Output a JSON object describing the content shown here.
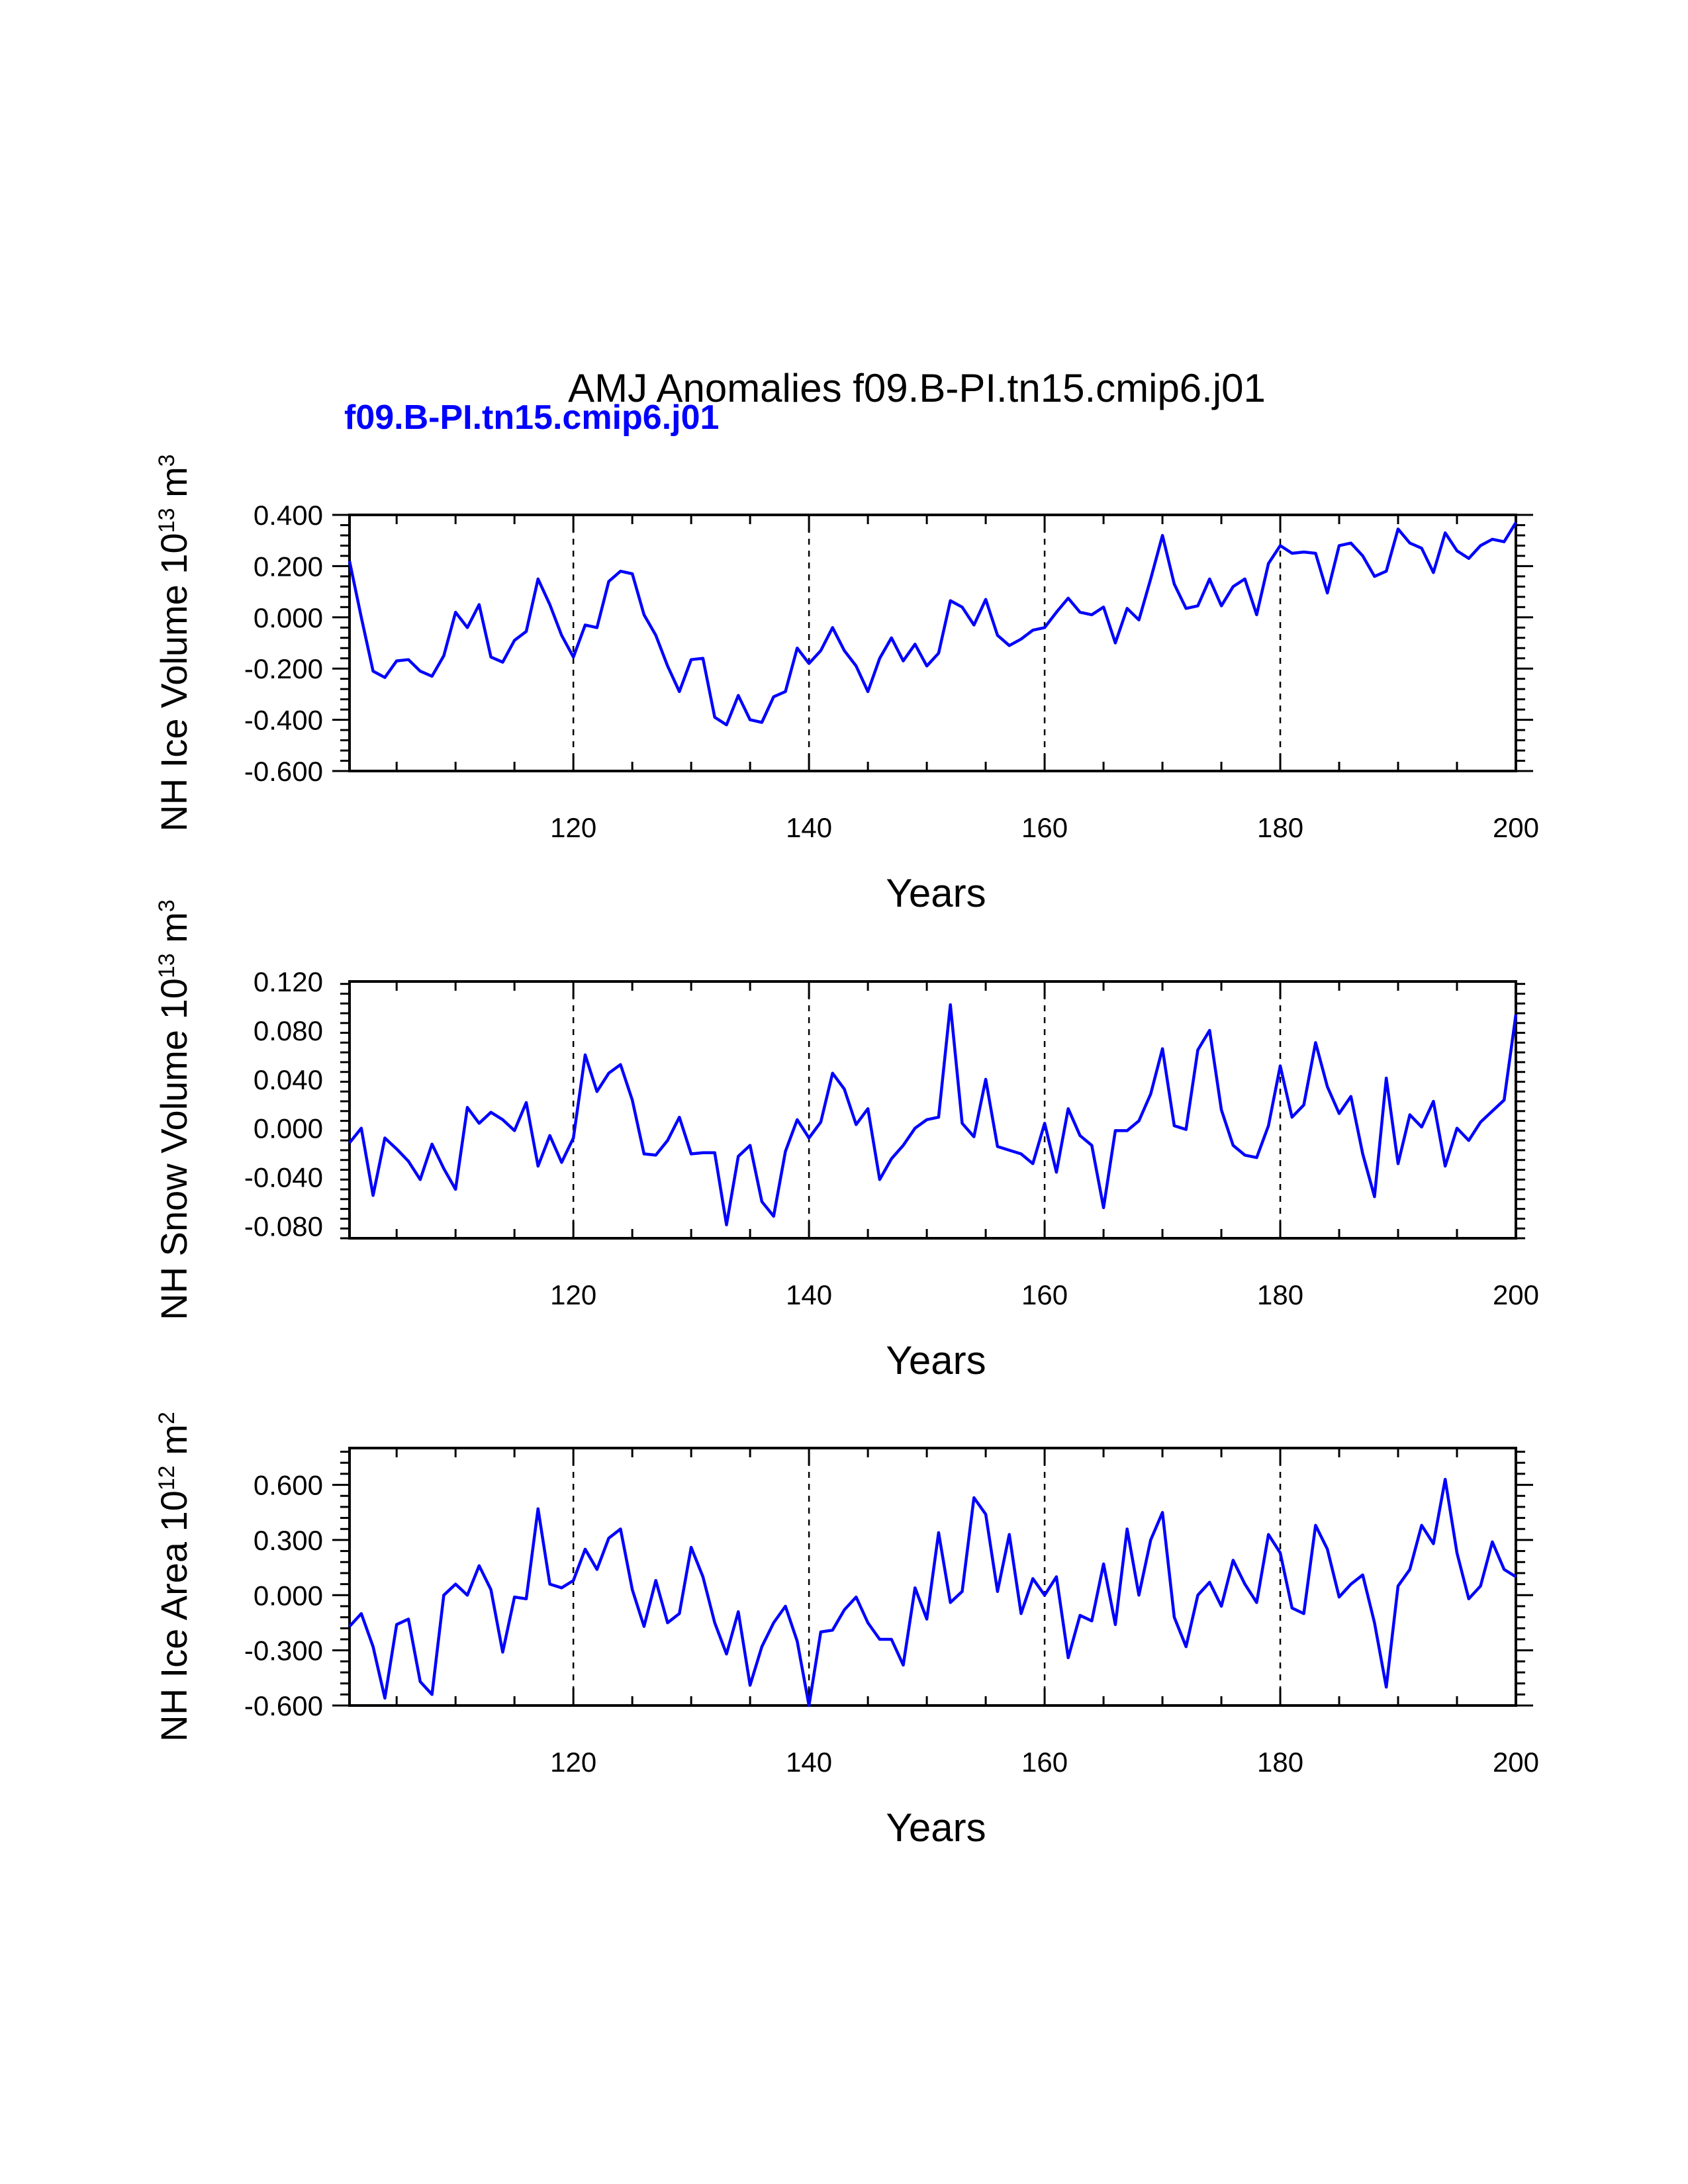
{
  "title": "AMJ Anomalies f09.B-PI.tn15.cmip6.j01",
  "subtitle": "f09.B-PI.tn15.cmip6.j01",
  "colors": {
    "series": "#0000ff",
    "subtitle": "#0000ff",
    "axes": "#000000"
  },
  "chart_data": [
    {
      "type": "line",
      "xlabel": "Years",
      "ylabel": {
        "text": "NH Ice Volume 10",
        "exp": "13",
        "unit": " m",
        "unit_exp": "3"
      },
      "xlim": [
        101,
        200
      ],
      "ylim": [
        -0.6,
        0.4
      ],
      "xticks": [
        120,
        140,
        160,
        180,
        200
      ],
      "yticks": [
        -0.6,
        -0.4,
        -0.2,
        0.0,
        0.2,
        0.4
      ],
      "ytick_labels": [
        "-0.600",
        "-0.400",
        "-0.200",
        "0.000",
        "0.200",
        "0.400"
      ],
      "grid": "vertical dashed at major x ticks",
      "series": [
        {
          "x_start": 101,
          "values": [
            0.22,
            0.0,
            -0.21,
            -0.235,
            -0.17,
            -0.165,
            -0.21,
            -0.23,
            -0.15,
            0.02,
            -0.04,
            0.05,
            -0.155,
            -0.175,
            -0.09,
            -0.055,
            0.15,
            0.05,
            -0.07,
            -0.155,
            -0.03,
            -0.04,
            0.14,
            0.18,
            0.17,
            0.01,
            -0.07,
            -0.19,
            -0.29,
            -0.165,
            -0.16,
            -0.39,
            -0.42,
            -0.305,
            -0.4,
            -0.41,
            -0.31,
            -0.29,
            -0.12,
            -0.18,
            -0.13,
            -0.04,
            -0.13,
            -0.19,
            -0.29,
            -0.16,
            -0.08,
            -0.17,
            -0.105,
            -0.19,
            -0.14,
            0.065,
            0.04,
            -0.03,
            0.07,
            -0.07,
            -0.11,
            -0.085,
            -0.05,
            -0.04,
            0.02,
            0.075,
            0.02,
            0.01,
            0.04,
            -0.1,
            0.035,
            -0.01,
            0.15,
            0.32,
            0.13,
            0.035,
            0.045,
            0.15,
            0.045,
            0.12,
            0.15,
            0.01,
            0.21,
            0.28,
            0.25,
            0.255,
            0.25,
            0.095,
            0.28,
            0.29,
            0.24,
            0.16,
            0.18,
            0.345,
            0.29,
            0.27,
            0.175,
            0.33,
            0.26,
            0.23,
            0.28,
            0.305,
            0.295,
            0.37
          ]
        }
      ]
    },
    {
      "type": "line",
      "xlabel": "Years",
      "ylabel": {
        "text": "NH Snow Volume 10",
        "exp": "13",
        "unit": " m",
        "unit_exp": "3"
      },
      "xlim": [
        101,
        200
      ],
      "ylim": [
        -0.09,
        0.12
      ],
      "xticks": [
        120,
        140,
        160,
        180,
        200
      ],
      "yticks": [
        -0.08,
        -0.04,
        0.0,
        0.04,
        0.08,
        0.12
      ],
      "ytick_labels": [
        "-0.080",
        "-0.040",
        "0.000",
        "0.040",
        "0.080",
        "0.120"
      ],
      "grid": "vertical dashed at major x ticks",
      "series": [
        {
          "x_start": 101,
          "values": [
            -0.012,
            0.0,
            -0.055,
            -0.008,
            -0.017,
            -0.027,
            -0.042,
            -0.013,
            -0.033,
            -0.05,
            0.017,
            0.004,
            0.013,
            0.007,
            -0.002,
            0.021,
            -0.031,
            -0.006,
            -0.028,
            -0.008,
            0.06,
            0.03,
            0.045,
            0.052,
            0.023,
            -0.021,
            -0.022,
            -0.01,
            0.009,
            -0.021,
            -0.02,
            -0.02,
            -0.079,
            -0.023,
            -0.014,
            -0.06,
            -0.072,
            -0.019,
            0.007,
            -0.008,
            0.005,
            0.045,
            0.032,
            0.003,
            0.016,
            -0.042,
            -0.025,
            -0.014,
            0.0,
            0.007,
            0.009,
            0.101,
            0.004,
            -0.007,
            0.04,
            -0.015,
            -0.018,
            -0.021,
            -0.029,
            0.004,
            -0.036,
            0.016,
            -0.006,
            -0.014,
            -0.065,
            -0.002,
            -0.002,
            0.006,
            0.028,
            0.065,
            0.002,
            -0.001,
            0.064,
            0.08,
            0.015,
            -0.014,
            -0.022,
            -0.024,
            0.002,
            0.051,
            0.009,
            0.019,
            0.07,
            0.034,
            0.012,
            0.026,
            -0.021,
            -0.056,
            0.041,
            -0.029,
            0.011,
            0.001,
            0.022,
            -0.031,
            0.0,
            -0.01,
            0.005,
            0.014,
            0.023,
            0.093
          ]
        }
      ]
    },
    {
      "type": "line",
      "xlabel": "Years",
      "ylabel": {
        "text": "NH Ice Area 10",
        "exp": "12",
        "unit": " m",
        "unit_exp": "2"
      },
      "xlim": [
        101,
        200
      ],
      "ylim": [
        -0.6,
        0.8
      ],
      "xticks": [
        120,
        140,
        160,
        180,
        200
      ],
      "yticks": [
        -0.6,
        -0.3,
        0.0,
        0.3,
        0.6
      ],
      "ytick_labels": [
        "-0.600",
        "-0.300",
        "0.000",
        "0.300",
        "0.600"
      ],
      "grid": "vertical dashed at major x ticks",
      "series": [
        {
          "x_start": 101,
          "values": [
            -0.17,
            -0.1,
            -0.28,
            -0.56,
            -0.16,
            -0.13,
            -0.47,
            -0.54,
            0.0,
            0.06,
            0.0,
            0.16,
            0.03,
            -0.31,
            -0.01,
            -0.02,
            0.47,
            0.06,
            0.04,
            0.08,
            0.25,
            0.14,
            0.31,
            0.36,
            0.03,
            -0.17,
            0.08,
            -0.15,
            -0.1,
            0.26,
            0.1,
            -0.15,
            -0.32,
            -0.09,
            -0.49,
            -0.28,
            -0.15,
            -0.06,
            -0.25,
            -0.6,
            -0.2,
            -0.19,
            -0.08,
            -0.01,
            -0.15,
            -0.24,
            -0.24,
            -0.38,
            0.04,
            -0.13,
            0.34,
            -0.04,
            0.02,
            0.53,
            0.44,
            0.02,
            0.33,
            -0.1,
            0.09,
            0.0,
            0.1,
            -0.34,
            -0.11,
            -0.14,
            0.17,
            -0.16,
            0.36,
            0.0,
            0.3,
            0.45,
            -0.12,
            -0.28,
            0.0,
            0.07,
            -0.06,
            0.19,
            0.06,
            -0.04,
            0.33,
            0.23,
            -0.07,
            -0.1,
            0.38,
            0.25,
            -0.01,
            0.06,
            0.11,
            -0.15,
            -0.5,
            0.05,
            0.14,
            0.38,
            0.28,
            0.63,
            0.23,
            -0.02,
            0.05,
            0.29,
            0.14,
            0.1
          ]
        }
      ]
    }
  ]
}
